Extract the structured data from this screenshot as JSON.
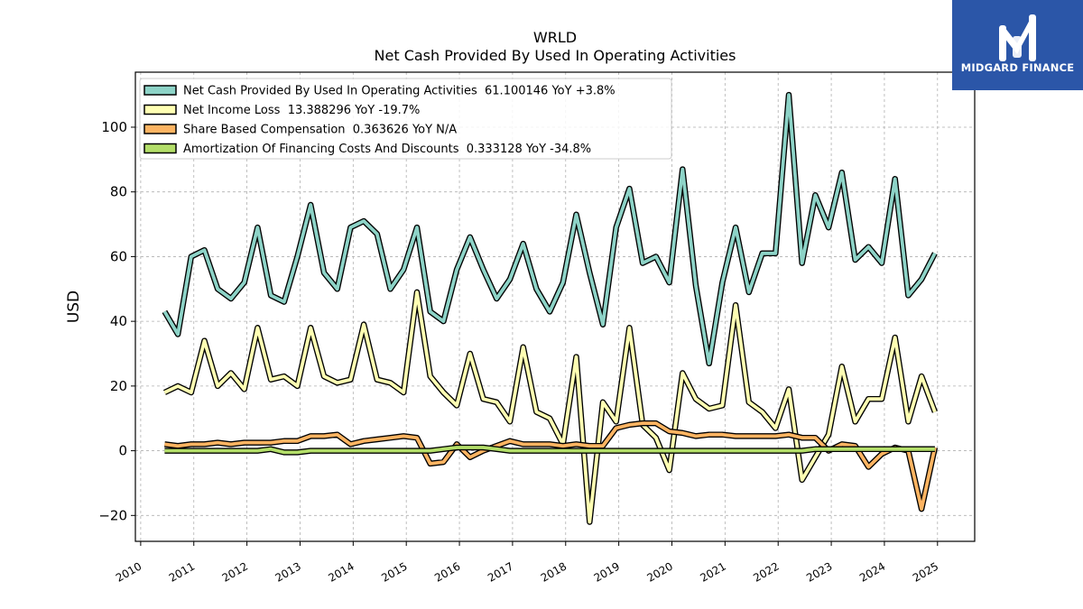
{
  "header": {
    "ticker": "WRLD",
    "subtitle": "Net Cash Provided By Used In Operating Activities"
  },
  "logo": {
    "text": "MIDGARD FINANCE",
    "background": "#2b56a8",
    "icon": "midgard-m-logo-icon"
  },
  "chart_data": {
    "type": "line",
    "title": "WRLD",
    "subtitle": "Net Cash Provided By Used In Operating Activities",
    "xlabel": "",
    "ylabel": "USD",
    "xlim": [
      2009.9,
      2025.7
    ],
    "ylim": [
      -28,
      117
    ],
    "x_ticks": [
      "2010",
      "2011",
      "2012",
      "2013",
      "2014",
      "2015",
      "2016",
      "2017",
      "2018",
      "2019",
      "2020",
      "2021",
      "2022",
      "2023",
      "2024",
      "2025"
    ],
    "y_ticks": [
      -20,
      0,
      20,
      40,
      60,
      80,
      100
    ],
    "y_tick_labels": [
      "−20",
      "0",
      "20",
      "40",
      "60",
      "80",
      "100"
    ],
    "grid": true,
    "legend_position": "top-left",
    "x": [
      2010.45,
      2010.7,
      2010.95,
      2011.2,
      2011.45,
      2011.7,
      2011.95,
      2012.2,
      2012.45,
      2012.7,
      2012.95,
      2013.2,
      2013.45,
      2013.7,
      2013.95,
      2014.2,
      2014.45,
      2014.7,
      2014.95,
      2015.2,
      2015.45,
      2015.7,
      2015.95,
      2016.2,
      2016.45,
      2016.7,
      2016.95,
      2017.2,
      2017.45,
      2017.7,
      2017.95,
      2018.2,
      2018.45,
      2018.7,
      2018.95,
      2019.2,
      2019.45,
      2019.7,
      2019.95,
      2020.2,
      2020.45,
      2020.7,
      2020.95,
      2021.2,
      2021.45,
      2021.7,
      2021.95,
      2022.2,
      2022.45,
      2022.7,
      2022.95,
      2023.2,
      2023.45,
      2023.7,
      2023.95,
      2024.2,
      2024.45,
      2024.7,
      2024.95
    ],
    "series": [
      {
        "name": "Net Cash Provided By Used In Operating Activities",
        "legend": "Net Cash Provided By Used In Operating Activities  61.100146 YoY +3.8%",
        "color": "#8dd3c7",
        "values": [
          43,
          36,
          60,
          62,
          50,
          47,
          52,
          69,
          48,
          46,
          60,
          76,
          55,
          50,
          69,
          71,
          67,
          50,
          56,
          69,
          43,
          40,
          56,
          66,
          56,
          47,
          53,
          64,
          50,
          43,
          52,
          73,
          55,
          39,
          69,
          81,
          58,
          60,
          52,
          87,
          51,
          27,
          52,
          69,
          49,
          61,
          61,
          110,
          58,
          79,
          69,
          86,
          59,
          63,
          58,
          84,
          48,
          53,
          61
        ]
      },
      {
        "name": "Net Income Loss",
        "legend": "Net Income Loss  13.388296 YoY -19.7%",
        "color": "#ffffb3",
        "values": [
          18,
          20,
          18,
          34,
          20,
          24,
          19,
          38,
          22,
          23,
          20,
          38,
          23,
          21,
          22,
          39,
          22,
          21,
          18,
          49,
          23,
          18,
          14,
          30,
          16,
          15,
          9,
          32,
          12,
          10,
          2,
          29,
          -22,
          15,
          9,
          38,
          8,
          4,
          -6,
          24,
          16,
          13,
          14,
          45,
          15,
          12,
          7,
          19,
          -9,
          -2,
          5,
          26,
          9,
          16,
          16,
          35,
          9,
          23,
          12
        ]
      },
      {
        "name": "Share Based Compensation",
        "legend": "Share Based Compensation  0.363626 YoY N/A",
        "color": "#fdb462",
        "values": [
          2,
          1.5,
          2,
          2,
          2.5,
          2,
          2.5,
          2.5,
          2.5,
          3,
          3,
          4.5,
          4.5,
          5,
          2,
          3,
          3.5,
          4,
          4.5,
          4,
          -4,
          -3.5,
          2,
          -2,
          0,
          1.5,
          3,
          2,
          2,
          2,
          1.5,
          2,
          1.5,
          1.5,
          7,
          8,
          8.5,
          8.5,
          6,
          5.5,
          4.5,
          5,
          5,
          4.5,
          4.5,
          4.5,
          4.5,
          5,
          4,
          4,
          0,
          2,
          1.5,
          -5,
          -1,
          1,
          0,
          -18,
          1
        ]
      },
      {
        "name": "Amortization Of Financing Costs And Discounts",
        "legend": "Amortization Of Financing Costs And Discounts  0.333128 YoY -34.8%",
        "color": "#b3de69",
        "values": [
          0,
          0,
          0,
          0,
          0,
          0,
          0,
          0,
          0.5,
          -0.5,
          -0.5,
          0,
          0,
          0,
          0,
          0,
          0,
          0,
          0,
          0,
          0,
          0.5,
          1,
          1,
          1,
          0.5,
          0,
          0,
          0,
          0,
          0,
          0,
          0,
          0,
          0,
          0,
          0,
          0,
          0,
          0,
          0,
          0,
          0,
          0,
          0,
          0,
          0,
          0,
          0,
          0.5,
          0.5,
          0.5,
          0.5,
          0.5,
          0.5,
          0.5,
          0.5,
          0.5,
          0.5
        ]
      }
    ]
  }
}
